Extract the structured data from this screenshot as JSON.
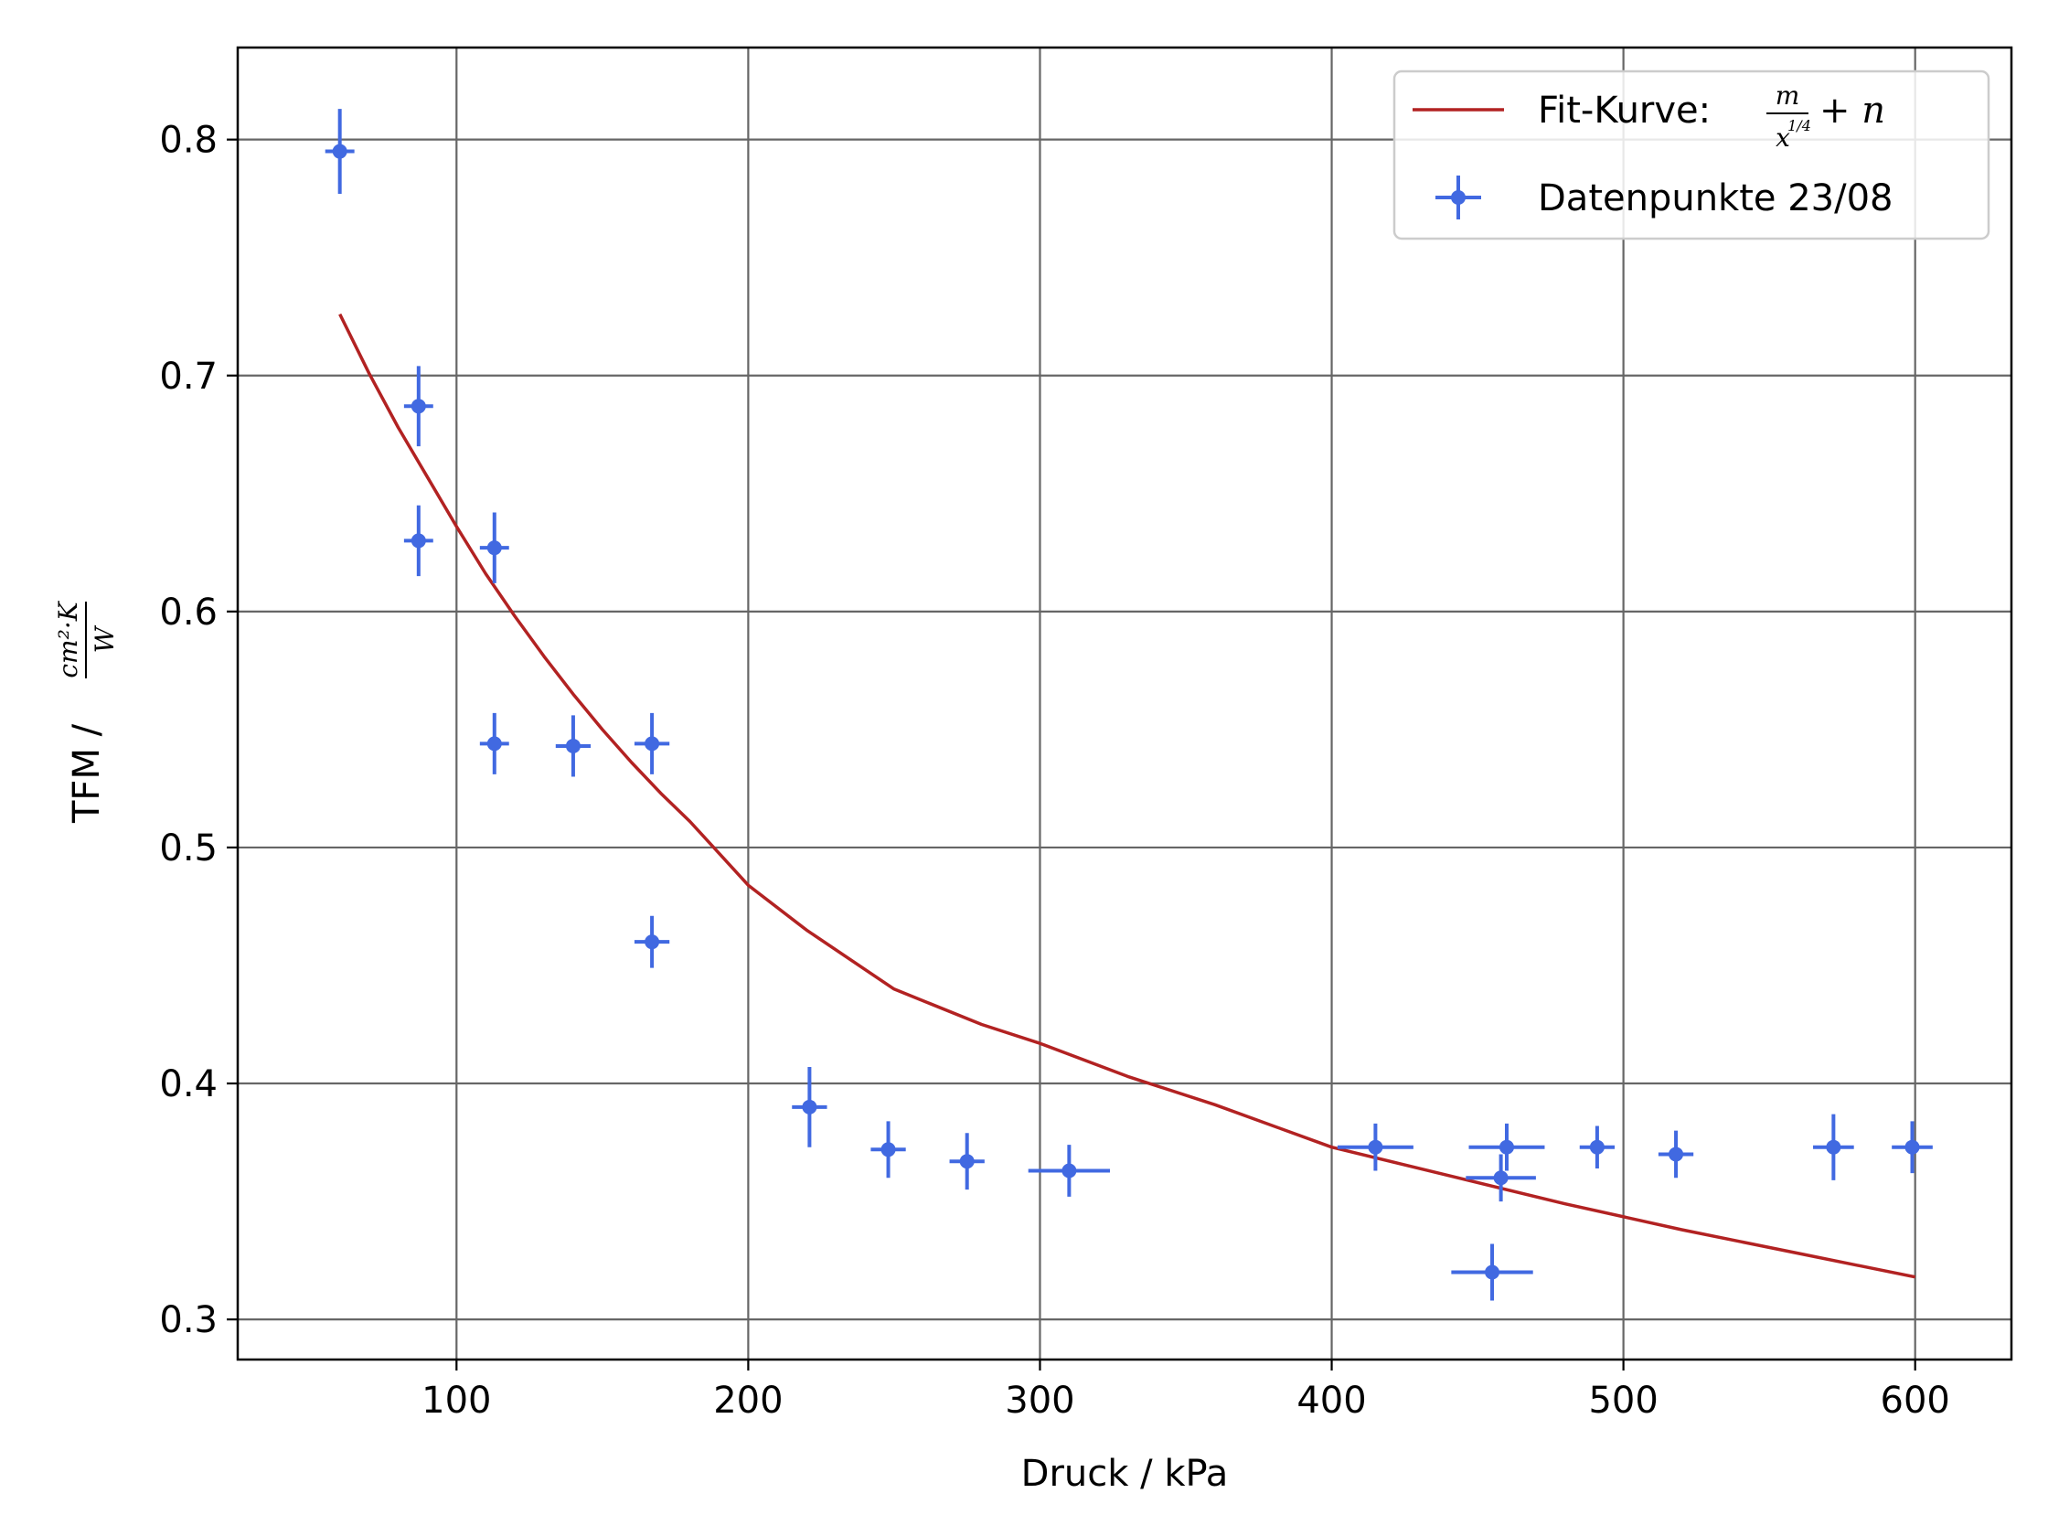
{
  "chart_data": {
    "type": "scatter",
    "xlabel": "Druck / kPa",
    "ylabel": {
      "prefix": "TFM / ",
      "fraction_numerator": "cm²·K",
      "fraction_denominator": "W"
    },
    "xlim": [
      25,
      633
    ],
    "ylim": [
      0.283,
      0.839
    ],
    "x_ticks": [
      100,
      200,
      300,
      400,
      500,
      600
    ],
    "y_ticks": [
      0.3,
      0.4,
      0.5,
      0.6,
      0.7,
      0.8
    ],
    "x_tick_labels": [
      "100",
      "200",
      "300",
      "400",
      "500",
      "600"
    ],
    "y_tick_labels": [
      "0.3",
      "0.4",
      "0.5",
      "0.6",
      "0.7",
      "0.8"
    ],
    "grid": true,
    "legend_position": "top-right",
    "series": [
      {
        "name": "Fit-Kurve",
        "kind": "line",
        "color": "#b22222",
        "legend_label": "Fit-Kurve:",
        "legend_formula": {
          "numerator": "m",
          "denominator_base": "x",
          "denominator_exponent": "1/4",
          "suffix": "+ n"
        },
        "x": [
          60,
          70,
          80,
          90,
          100,
          110,
          120,
          130,
          140,
          150,
          160,
          170,
          180,
          200,
          220,
          250,
          280,
          300,
          330,
          360,
          400,
          440,
          480,
          520,
          560,
          600
        ],
        "y": [
          0.726,
          0.701,
          0.678,
          0.657,
          0.636,
          0.616,
          0.598,
          0.581,
          0.565,
          0.55,
          0.536,
          0.523,
          0.511,
          0.484,
          0.465,
          0.44,
          0.425,
          0.417,
          0.403,
          0.391,
          0.373,
          0.361,
          0.349,
          0.338,
          0.328,
          0.318
        ]
      },
      {
        "name": "Datenpunkte 23/08",
        "kind": "errorbar",
        "color": "#4169e1",
        "points": [
          {
            "x": 60,
            "y": 0.795,
            "xerr": 5,
            "yerr": 0.018
          },
          {
            "x": 87,
            "y": 0.687,
            "xerr": 5,
            "yerr": 0.017
          },
          {
            "x": 87,
            "y": 0.63,
            "xerr": 5,
            "yerr": 0.015
          },
          {
            "x": 113,
            "y": 0.627,
            "xerr": 5,
            "yerr": 0.015
          },
          {
            "x": 113,
            "y": 0.544,
            "xerr": 5,
            "yerr": 0.013
          },
          {
            "x": 140,
            "y": 0.543,
            "xerr": 6,
            "yerr": 0.013
          },
          {
            "x": 167,
            "y": 0.544,
            "xerr": 6,
            "yerr": 0.013
          },
          {
            "x": 167,
            "y": 0.46,
            "xerr": 6,
            "yerr": 0.011
          },
          {
            "x": 221,
            "y": 0.39,
            "xerr": 6,
            "yerr": 0.017
          },
          {
            "x": 248,
            "y": 0.372,
            "xerr": 6,
            "yerr": 0.012
          },
          {
            "x": 275,
            "y": 0.367,
            "xerr": 6,
            "yerr": 0.012
          },
          {
            "x": 310,
            "y": 0.363,
            "xerr": 14,
            "yerr": 0.011
          },
          {
            "x": 415,
            "y": 0.373,
            "xerr": 13,
            "yerr": 0.01
          },
          {
            "x": 455,
            "y": 0.32,
            "xerr": 14,
            "yerr": 0.012
          },
          {
            "x": 458,
            "y": 0.36,
            "xerr": 12,
            "yerr": 0.01
          },
          {
            "x": 460,
            "y": 0.373,
            "xerr": 13,
            "yerr": 0.01
          },
          {
            "x": 491,
            "y": 0.373,
            "xerr": 6,
            "yerr": 0.009
          },
          {
            "x": 518,
            "y": 0.37,
            "xerr": 6,
            "yerr": 0.01
          },
          {
            "x": 572,
            "y": 0.373,
            "xerr": 7,
            "yerr": 0.014
          },
          {
            "x": 599,
            "y": 0.373,
            "xerr": 7,
            "yerr": 0.011
          }
        ]
      }
    ]
  }
}
